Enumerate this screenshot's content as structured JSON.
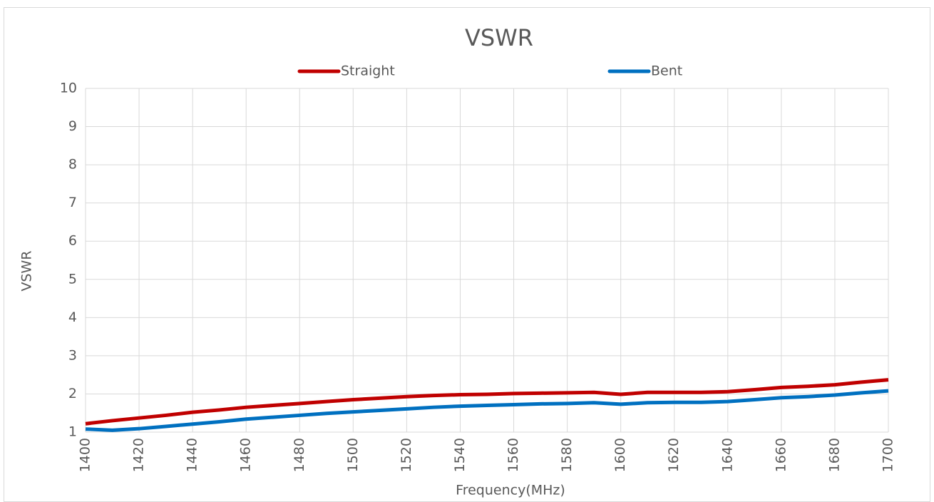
{
  "chart_data": {
    "type": "line",
    "title": "VSWR",
    "x_label": "Frequency(MHz)",
    "y_label": "VSWR",
    "x": [
      1400,
      1410,
      1420,
      1430,
      1440,
      1450,
      1460,
      1470,
      1480,
      1490,
      1500,
      1510,
      1520,
      1530,
      1540,
      1550,
      1560,
      1570,
      1580,
      1590,
      1600,
      1610,
      1620,
      1630,
      1640,
      1650,
      1660,
      1670,
      1680,
      1690,
      1700
    ],
    "series": [
      {
        "name": "Straight",
        "color": "#c00000",
        "values": [
          1.22,
          1.3,
          1.37,
          1.44,
          1.52,
          1.58,
          1.65,
          1.7,
          1.75,
          1.8,
          1.85,
          1.89,
          1.93,
          1.96,
          1.98,
          1.99,
          2.01,
          2.02,
          2.03,
          2.04,
          1.99,
          2.04,
          2.04,
          2.04,
          2.06,
          2.11,
          2.17,
          2.2,
          2.24,
          2.31,
          2.37
        ]
      },
      {
        "name": "Bent",
        "color": "#0070c0",
        "values": [
          1.08,
          1.05,
          1.09,
          1.15,
          1.21,
          1.27,
          1.34,
          1.39,
          1.44,
          1.49,
          1.53,
          1.57,
          1.61,
          1.65,
          1.68,
          1.7,
          1.72,
          1.74,
          1.75,
          1.77,
          1.73,
          1.77,
          1.78,
          1.78,
          1.8,
          1.85,
          1.9,
          1.93,
          1.97,
          2.03,
          2.08
        ]
      }
    ],
    "xlim": [
      1400,
      1700
    ],
    "xticks": [
      1400,
      1420,
      1440,
      1460,
      1480,
      1500,
      1520,
      1540,
      1560,
      1580,
      1600,
      1620,
      1640,
      1660,
      1680,
      1700
    ],
    "ylim": [
      1,
      10
    ],
    "yticks": [
      1,
      2,
      3,
      4,
      5,
      6,
      7,
      8,
      9,
      10
    ],
    "grid": true,
    "legend": "top"
  }
}
